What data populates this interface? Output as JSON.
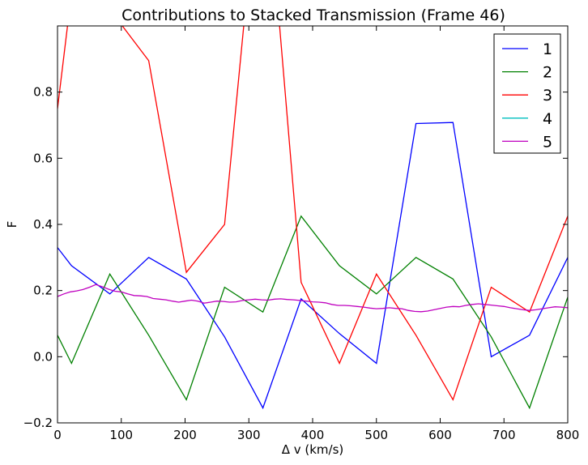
{
  "chart_data": {
    "type": "line",
    "title": "Contributions to Stacked Transmission (Frame 46)",
    "xlabel": "Δ v (km/s)",
    "ylabel": "F",
    "xlim": [
      0,
      800
    ],
    "ylim": [
      -0.2,
      1.0
    ],
    "xticks": [
      0,
      100,
      200,
      300,
      400,
      500,
      600,
      700,
      800
    ],
    "yticks": [
      -0.2,
      0.0,
      0.2,
      0.4,
      0.6,
      0.8
    ],
    "ytick_labels": [
      "−0.2",
      "0.0",
      "0.2",
      "0.4",
      "0.6",
      "0.8"
    ],
    "grid": false,
    "legend_position": "top-right",
    "series": [
      {
        "name": "1",
        "color": "#0000ff",
        "x": [
          0,
          22,
          82,
          143,
          202,
          262,
          322,
          382,
          442,
          500,
          562,
          620,
          680,
          740,
          800
        ],
        "y": [
          0.33,
          0.275,
          0.19,
          0.3,
          0.235,
          0.06,
          -0.155,
          0.175,
          0.07,
          -0.02,
          0.705,
          0.708,
          0.0,
          0.065,
          0.3
        ]
      },
      {
        "name": "2",
        "color": "#008000",
        "x": [
          0,
          22,
          82,
          143,
          202,
          262,
          322,
          382,
          442,
          500,
          562,
          620,
          680,
          740,
          800
        ],
        "y": [
          0.065,
          -0.02,
          0.25,
          0.065,
          -0.13,
          0.21,
          0.135,
          0.425,
          0.275,
          0.19,
          0.3,
          0.235,
          0.06,
          -0.155,
          0.18
        ]
      },
      {
        "name": "3",
        "color": "#ff0000",
        "x": [
          0,
          22,
          82,
          143,
          202,
          262,
          322,
          382,
          442,
          500,
          562,
          620,
          680,
          740,
          800
        ],
        "y": [
          0.75,
          1.1,
          1.05,
          0.895,
          0.255,
          0.4,
          1.6,
          0.225,
          -0.02,
          0.25,
          0.065,
          -0.13,
          0.21,
          0.135,
          0.425
        ]
      },
      {
        "name": "4",
        "color": "#00bfbf",
        "x": [],
        "y": []
      },
      {
        "name": "5",
        "color": "#bf00bf",
        "x": [
          0,
          10,
          20,
          30,
          40,
          50,
          60,
          70,
          80,
          90,
          100,
          110,
          120,
          130,
          140,
          150,
          160,
          170,
          180,
          190,
          200,
          210,
          220,
          230,
          240,
          250,
          260,
          270,
          280,
          290,
          300,
          310,
          320,
          330,
          340,
          350,
          360,
          370,
          380,
          390,
          400,
          410,
          420,
          430,
          440,
          450,
          460,
          470,
          480,
          490,
          500,
          510,
          520,
          530,
          540,
          550,
          560,
          570,
          580,
          590,
          600,
          610,
          620,
          630,
          640,
          650,
          660,
          670,
          680,
          690,
          700,
          710,
          720,
          730,
          740,
          750,
          760,
          770,
          780,
          790,
          800
        ],
        "y": [
          0.182,
          0.19,
          0.196,
          0.199,
          0.203,
          0.21,
          0.218,
          0.212,
          0.204,
          0.198,
          0.196,
          0.19,
          0.185,
          0.184,
          0.182,
          0.176,
          0.174,
          0.172,
          0.168,
          0.165,
          0.168,
          0.171,
          0.168,
          0.162,
          0.165,
          0.168,
          0.167,
          0.165,
          0.166,
          0.17,
          0.172,
          0.174,
          0.172,
          0.171,
          0.174,
          0.175,
          0.173,
          0.172,
          0.17,
          0.168,
          0.166,
          0.165,
          0.163,
          0.158,
          0.155,
          0.155,
          0.154,
          0.152,
          0.15,
          0.147,
          0.145,
          0.146,
          0.148,
          0.146,
          0.145,
          0.14,
          0.137,
          0.136,
          0.138,
          0.142,
          0.146,
          0.15,
          0.152,
          0.151,
          0.155,
          0.158,
          0.16,
          0.158,
          0.156,
          0.154,
          0.152,
          0.148,
          0.145,
          0.142,
          0.14,
          0.142,
          0.145,
          0.148,
          0.151,
          0.15,
          0.148
        ]
      }
    ]
  }
}
